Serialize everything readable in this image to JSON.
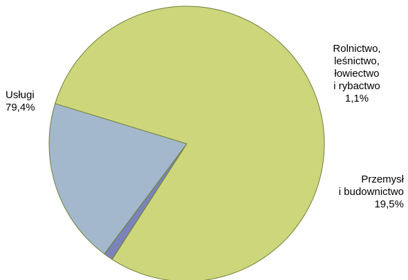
{
  "chart_data": {
    "type": "pie",
    "title": "",
    "slices": [
      {
        "label_lines": [
          "Usługi"
        ],
        "value_label": "79,4%",
        "value": 79.4,
        "color": "#cdd67b"
      },
      {
        "label_lines": [
          "Rolnictwo,",
          "leśnictwo,",
          "łowiectwo",
          "i rybactwo"
        ],
        "value_label": "1,1%",
        "value": 1.1,
        "color": "#7a84b8"
      },
      {
        "label_lines": [
          "Przemysł",
          "i budownictwo"
        ],
        "value_label": "19,5%",
        "value": 19.5,
        "color": "#a3b8cc"
      }
    ],
    "legend": "none"
  }
}
